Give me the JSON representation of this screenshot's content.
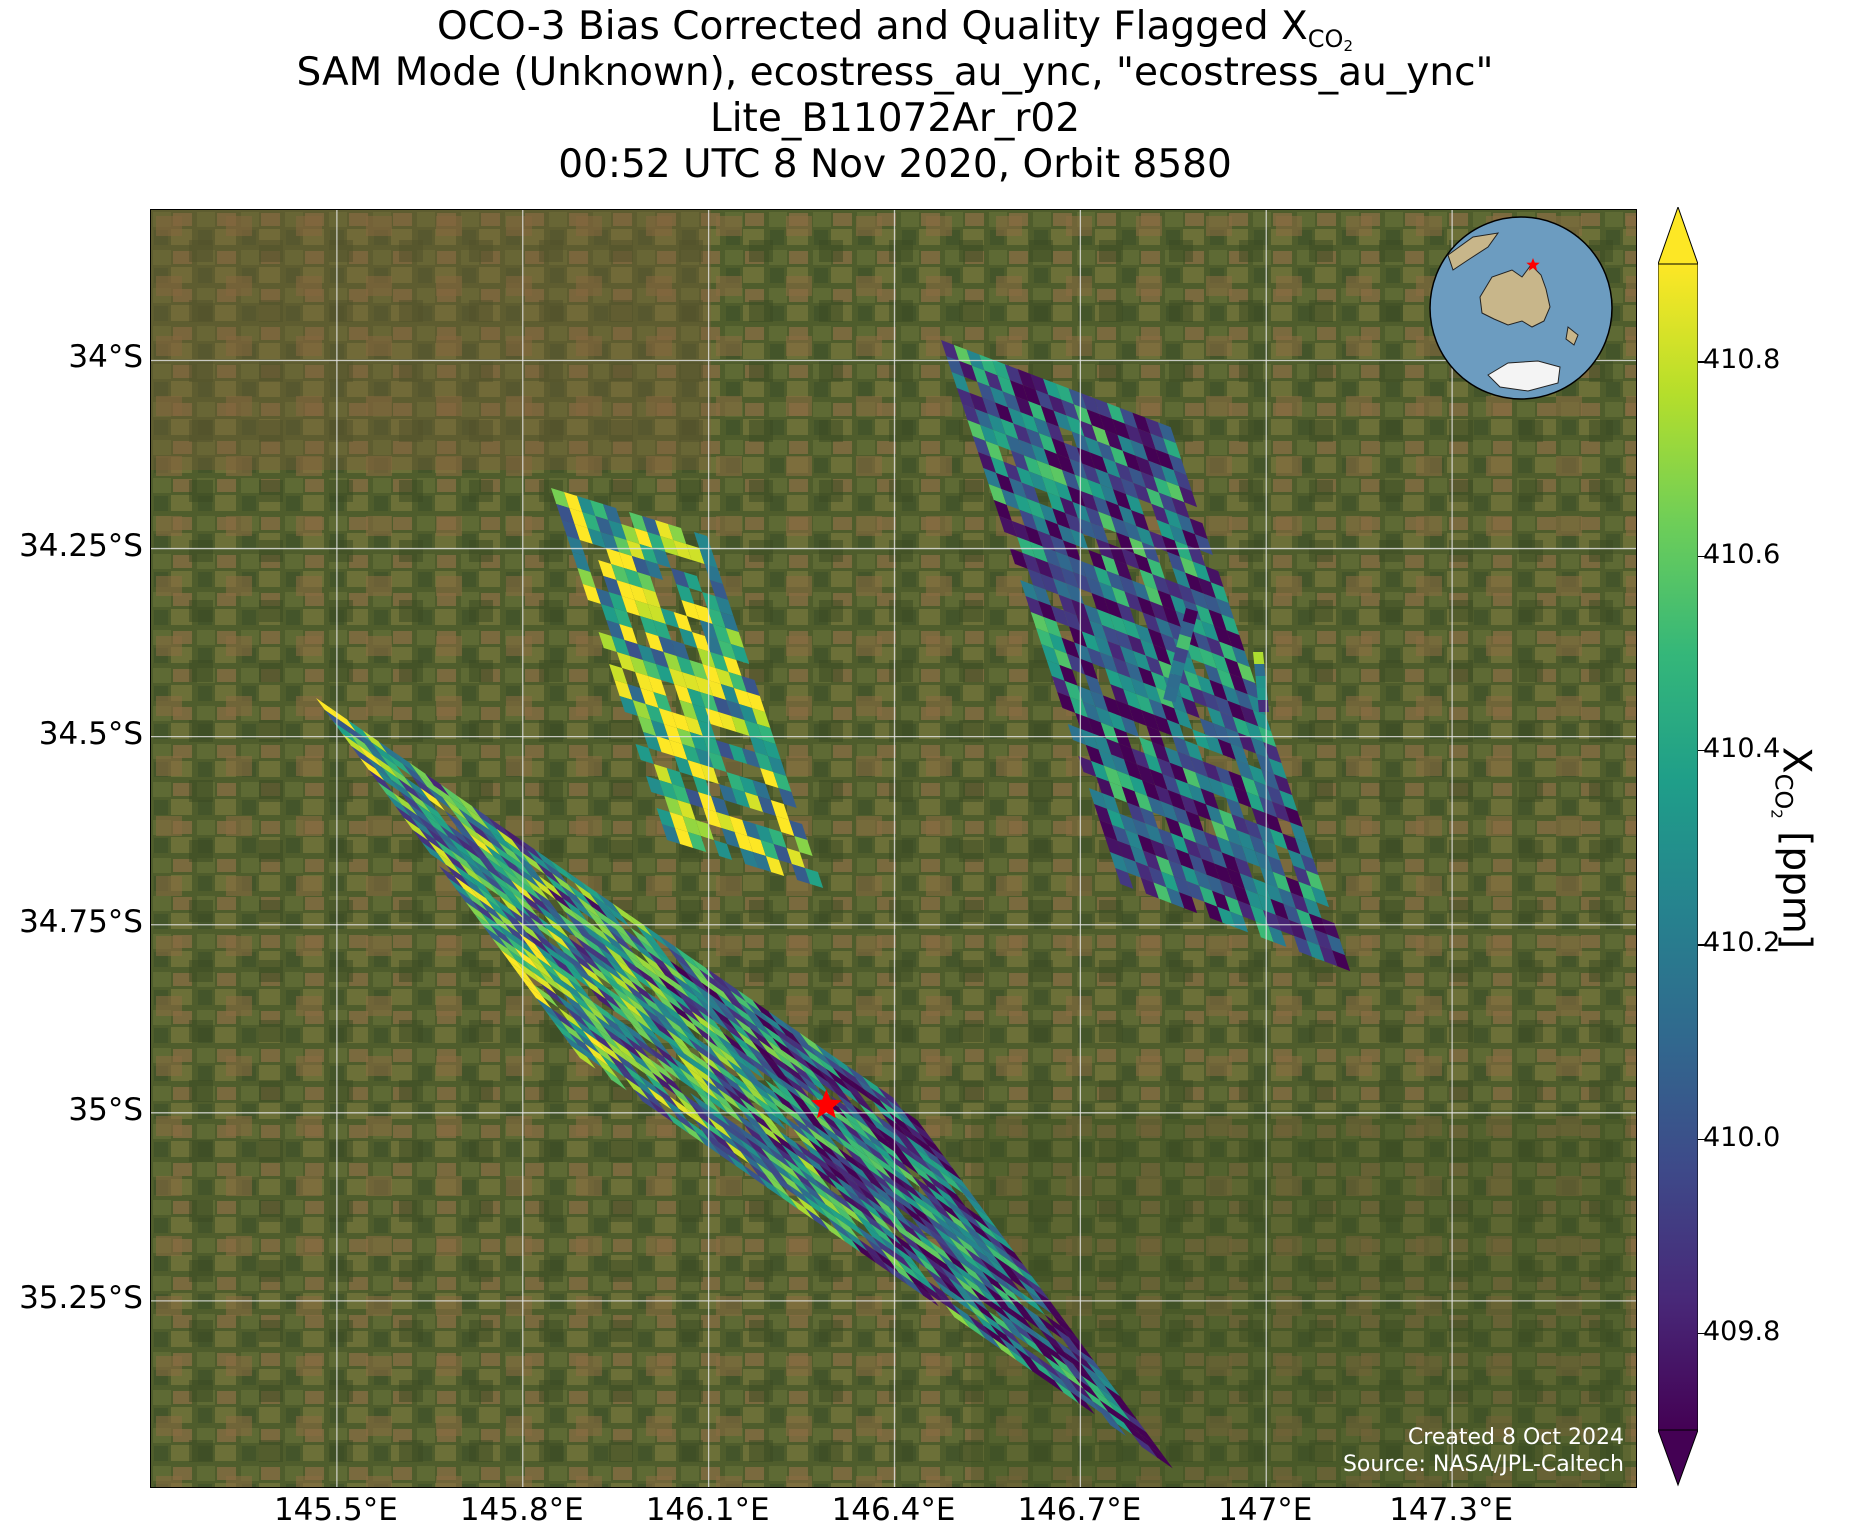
{
  "title": {
    "line1_prefix": "OCO-3 Bias Corrected and Quality Flagged X",
    "line1_sub": "CO",
    "line1_sub2": "2",
    "line2": "SAM Mode (Unknown), ecostress_au_ync, \"ecostress_au_ync\"",
    "line3": "Lite_B11072Ar_r02",
    "line4": "00:52 UTC 8 Nov 2020, Orbit 8580"
  },
  "map": {
    "lon_range": [
      145.2,
      147.6
    ],
    "lat_range": [
      -35.5,
      -33.8
    ],
    "lon_ticks": [
      "145.5°E",
      "145.8°E",
      "146.1°E",
      "146.4°E",
      "146.7°E",
      "147°E",
      "147.3°E"
    ],
    "lat_ticks": [
      "34°S",
      "34.25°S",
      "34.5°S",
      "34.75°S",
      "35°S",
      "35.25°S"
    ],
    "gridlines": true,
    "basemap": "satellite imagery (farmland, green/brown)",
    "target_marker": {
      "symbol": "red-star",
      "lon": 146.29,
      "lat": -34.99,
      "color": "#ff0000"
    },
    "inset_globe": {
      "center": "Australia",
      "marker": "red-star",
      "placement": "top-right"
    },
    "credit_line1": "Created 8 Oct 2024",
    "credit_line2": "Source: NASA/JPL-Caltech"
  },
  "colorbar": {
    "colormap": "viridis",
    "range": [
      409.7,
      410.9
    ],
    "ticks": [
      "409.8",
      "410.0",
      "410.2",
      "410.4",
      "410.6",
      "410.8"
    ],
    "extend": "both",
    "label_prefix": "X",
    "label_sub": "CO",
    "label_sub2": "2",
    "label_suffix": " [ppm]"
  },
  "colors": {
    "viridis": [
      "#440154",
      "#482878",
      "#3e4989",
      "#31688e",
      "#26828e",
      "#1f9e89",
      "#35b779",
      "#6ece58",
      "#b5de2b",
      "#fde725"
    ],
    "marker": "#ff0000",
    "ocean": "#6c9cc0",
    "land": "#c8b68a"
  }
}
